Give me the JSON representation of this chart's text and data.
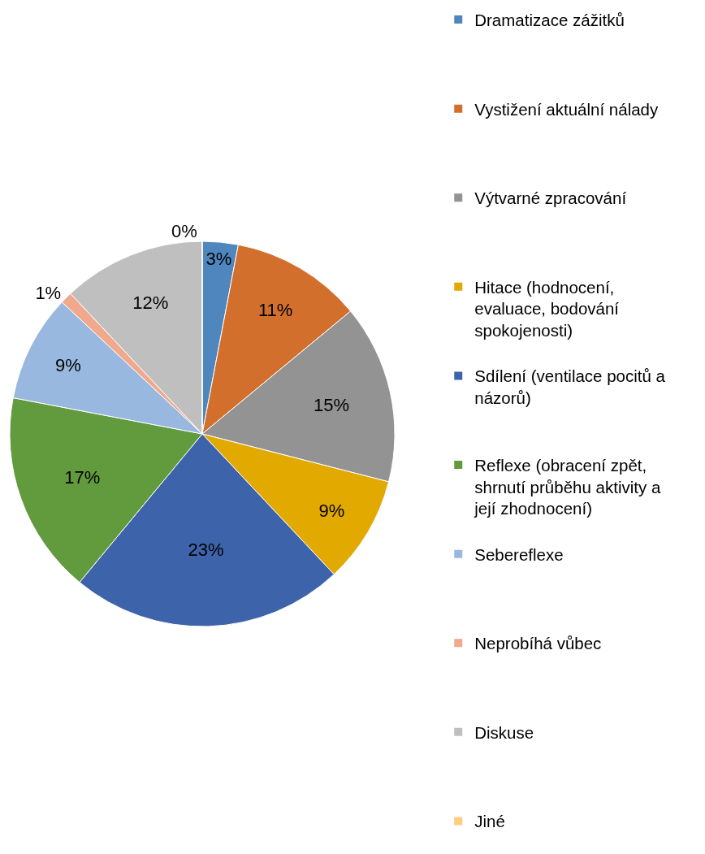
{
  "chart_data": {
    "type": "pie",
    "categories": [
      "Dramatizace zážitků",
      "Vystižení aktuální nálady",
      "Výtvarné zpracování",
      "Hitace (hodnocení, evaluace, bodování spokojenosti)",
      "Sdílení (ventilace pocitů a názorů)",
      "Reflexe (obracení zpět, shrnutí průběhu aktivity a její zhodnocení)",
      "Sebereflexe",
      "Neprobíhá vůbec",
      "Diskuse",
      "Jiné"
    ],
    "values": [
      3,
      11,
      15,
      9,
      23,
      17,
      9,
      1,
      12,
      0
    ],
    "colors": [
      "#4f86be",
      "#d36f2c",
      "#939393",
      "#e2a900",
      "#3d63ab",
      "#629a3e",
      "#98b8df",
      "#f0a98c",
      "#bfbfbf",
      "#fecd7e"
    ],
    "value_labels": [
      "3%",
      "11%",
      "15%",
      "9%",
      "23%",
      "17%",
      "9%",
      "1%",
      "12%",
      "0%"
    ],
    "legend": "right"
  }
}
